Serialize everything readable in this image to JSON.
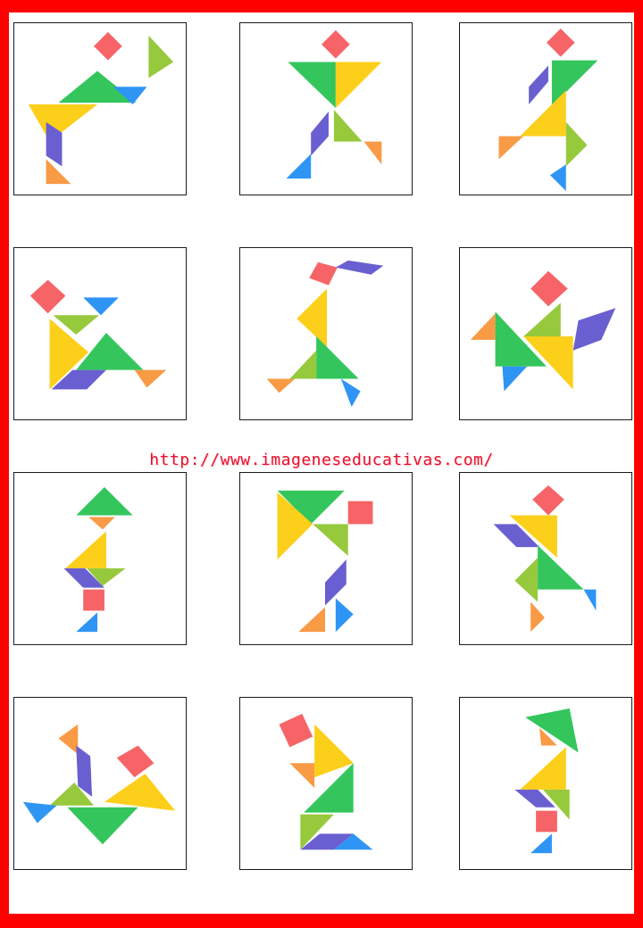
{
  "watermark": {
    "text": "http://www.imageneseducativas.com/"
  },
  "palette": {
    "frame": "#ff0000",
    "red_square": "#f76467",
    "green": "#34c65c",
    "yellow": "#fccf1a",
    "lime": "#97c93d",
    "blue": "#2f95f5",
    "purple": "#6a5fd0",
    "orange": "#f99a45",
    "text": "#e8112d"
  },
  "grid": {
    "rows": 4,
    "columns": 3,
    "card_count": 12,
    "content": "tangram-figures"
  }
}
